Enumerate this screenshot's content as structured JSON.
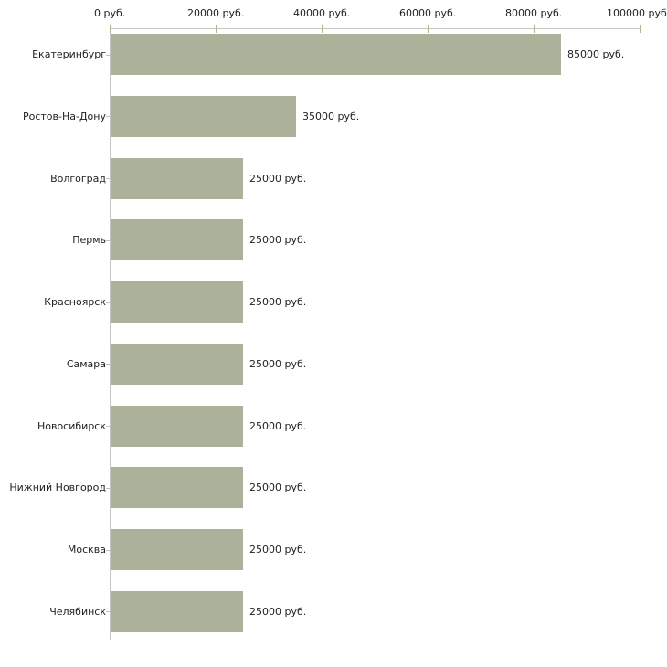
{
  "chart_data": {
    "type": "bar",
    "orientation": "horizontal",
    "title": "",
    "xlabel": "",
    "ylabel": "",
    "unit": "руб.",
    "categories": [
      "Екатеринбург",
      "Ростов-На-Дону",
      "Волгоград",
      "Пермь",
      "Красноярск",
      "Самара",
      "Новосибирск",
      "Нижний Новгород",
      "Москва",
      "Челябинск"
    ],
    "values": [
      85000,
      35000,
      25000,
      25000,
      25000,
      25000,
      25000,
      25000,
      25000,
      25000
    ],
    "value_labels": [
      "85000 руб.",
      "35000 руб.",
      "25000 руб.",
      "25000 руб.",
      "25000 руб.",
      "25000 руб.",
      "25000 руб.",
      "25000 руб.",
      "25000 руб.",
      "25000 руб."
    ],
    "x_axis": {
      "position": "top",
      "min": 0,
      "max": 100000,
      "ticks": [
        0,
        20000,
        40000,
        60000,
        80000,
        100000
      ],
      "tick_labels": [
        "0 руб.",
        "20000 руб.",
        "40000 руб.",
        "60000 руб.",
        "80000 руб.",
        "100000 руб"
      ]
    },
    "grid": false,
    "legend": false,
    "colors": {
      "bar": "#acb29a",
      "axis_line": "#c6c6c6",
      "x_tick": "#b3b394",
      "y_tick": "#c3c3b2",
      "text": "#1f1f1f",
      "background": "#ffffff"
    }
  }
}
